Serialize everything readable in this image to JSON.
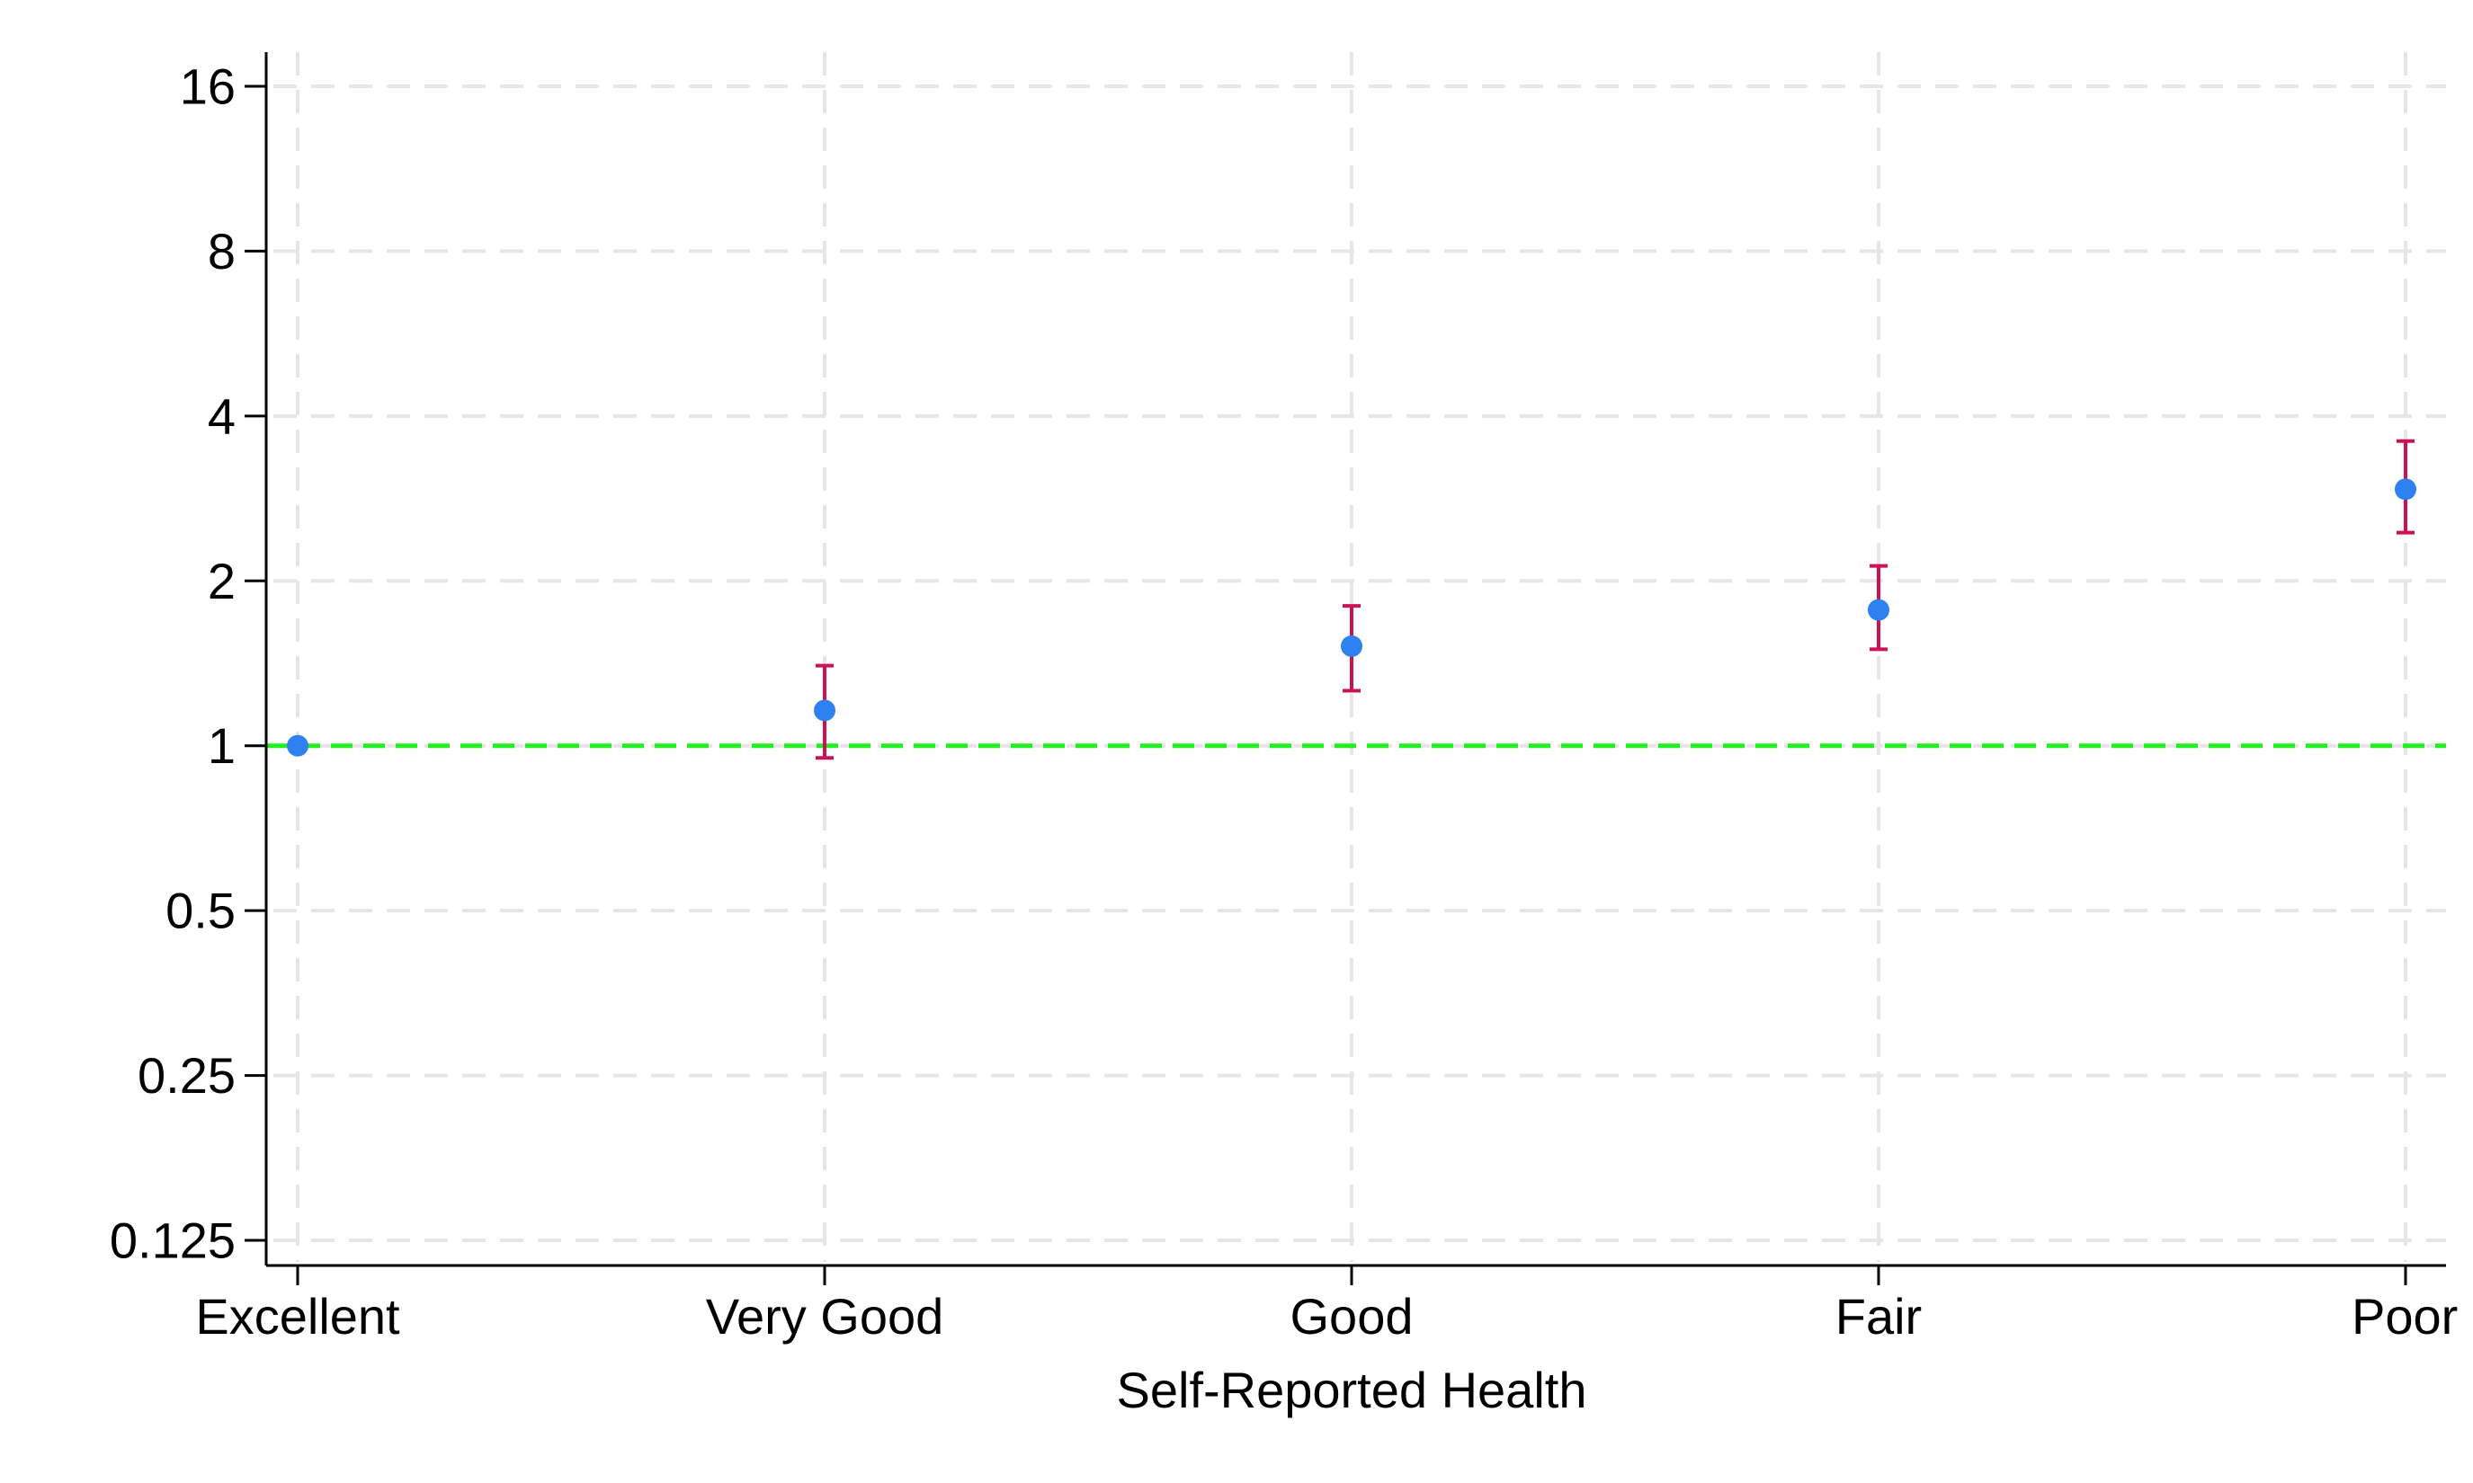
{
  "chart_data": {
    "type": "scatter",
    "title": "",
    "xlabel": "Self-Reported Health",
    "ylabel": "",
    "categories": [
      "Excellent",
      "Very Good",
      "Good",
      "Fair",
      "Poor"
    ],
    "y_scale": "log2",
    "ylim": [
      0.125,
      16
    ],
    "y_ticks": [
      0.125,
      0.25,
      0.5,
      1,
      2,
      4,
      8,
      16
    ],
    "y_tick_labels": [
      "0.125",
      "0.25",
      "0.5",
      "1",
      "2",
      "4",
      "8",
      "16"
    ],
    "grid": true,
    "legend": "none",
    "reference_line": {
      "y": 1,
      "color": "#22ee22",
      "style": "dashed"
    },
    "points": [
      {
        "category": "Excellent",
        "estimate": 1.0,
        "ci_low": null,
        "ci_high": null
      },
      {
        "category": "Very Good",
        "estimate": 1.16,
        "ci_low": 0.95,
        "ci_high": 1.4
      },
      {
        "category": "Good",
        "estimate": 1.52,
        "ci_low": 1.26,
        "ci_high": 1.8
      },
      {
        "category": "Fair",
        "estimate": 1.77,
        "ci_low": 1.5,
        "ci_high": 2.13
      },
      {
        "category": "Poor",
        "estimate": 2.94,
        "ci_low": 2.45,
        "ci_high": 3.6
      }
    ],
    "colors": {
      "point": "#2f80f0",
      "error_bar": "#cc1155",
      "grid": "#e6e6e6",
      "axis": "#000000"
    }
  }
}
